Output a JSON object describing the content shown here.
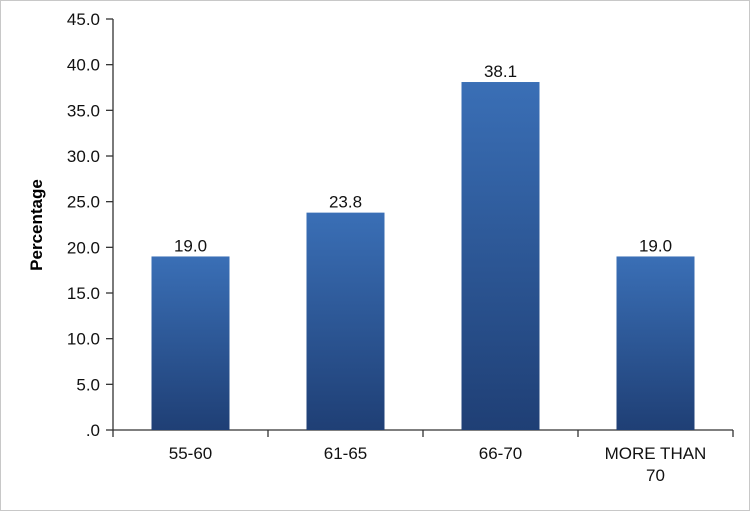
{
  "chart_data": {
    "type": "bar",
    "title": "",
    "xlabel": "",
    "ylabel": "Percentage",
    "categories": [
      {
        "lines": [
          "55-60"
        ]
      },
      {
        "lines": [
          "61-65"
        ]
      },
      {
        "lines": [
          "66-70"
        ]
      },
      {
        "lines": [
          "MORE THAN",
          "70"
        ]
      }
    ],
    "values": [
      19.0,
      23.8,
      38.1,
      19.0
    ],
    "data_labels": [
      "19.0",
      "23.8",
      "38.1",
      "19.0"
    ],
    "ylim": [
      0,
      45
    ],
    "y_ticks": [
      {
        "value": 0,
        "label": ".0"
      },
      {
        "value": 5,
        "label": "5.0"
      },
      {
        "value": 10,
        "label": "10.0"
      },
      {
        "value": 15,
        "label": "15.0"
      },
      {
        "value": 20,
        "label": "20.0"
      },
      {
        "value": 25,
        "label": "25.0"
      },
      {
        "value": 30,
        "label": "30.0"
      },
      {
        "value": 35,
        "label": "35.0"
      },
      {
        "value": 40,
        "label": "40.0"
      },
      {
        "value": 45,
        "label": "45.0"
      }
    ],
    "grid": false,
    "legend": "none",
    "colors": {
      "bar_top": "#3a6fb6",
      "bar_bottom": "#1f3f75"
    }
  }
}
